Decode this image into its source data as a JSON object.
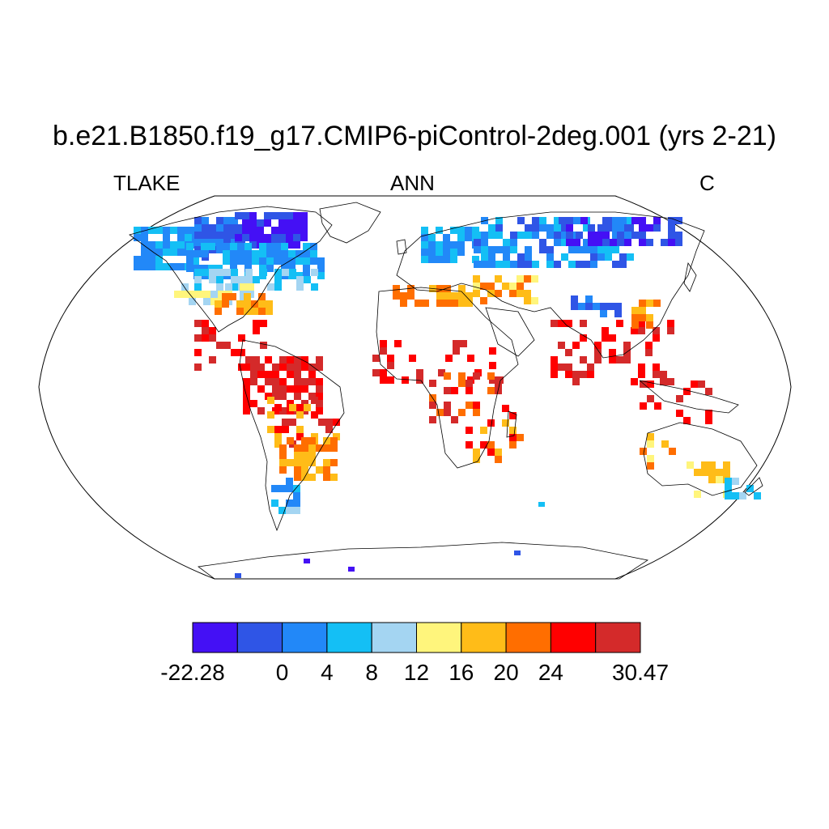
{
  "title": "b.e21.B1850.f19_g17.CMIP6-piControl-2deg.001 (yrs 2-21)",
  "left_label": "TLAKE",
  "center_label": "ANN",
  "right_label": "C",
  "colorbar": {
    "colors": [
      "#4410f5",
      "#2f55e6",
      "#2288f8",
      "#14bff5",
      "#a4d5f2",
      "#fff57c",
      "#ffbc18",
      "#ff6e00",
      "#ff0000",
      "#d42a2a"
    ],
    "labels": [
      "-22.28",
      "0",
      "4",
      "8",
      "12",
      "16",
      "20",
      "24",
      "30.47"
    ],
    "label_boundaries": [
      0,
      2,
      3,
      4,
      5,
      6,
      7,
      8,
      10
    ]
  },
  "field": {
    "variable": "TLAKE",
    "units": "C",
    "period": "ANN",
    "min": -22.28,
    "max": 30.47
  }
}
